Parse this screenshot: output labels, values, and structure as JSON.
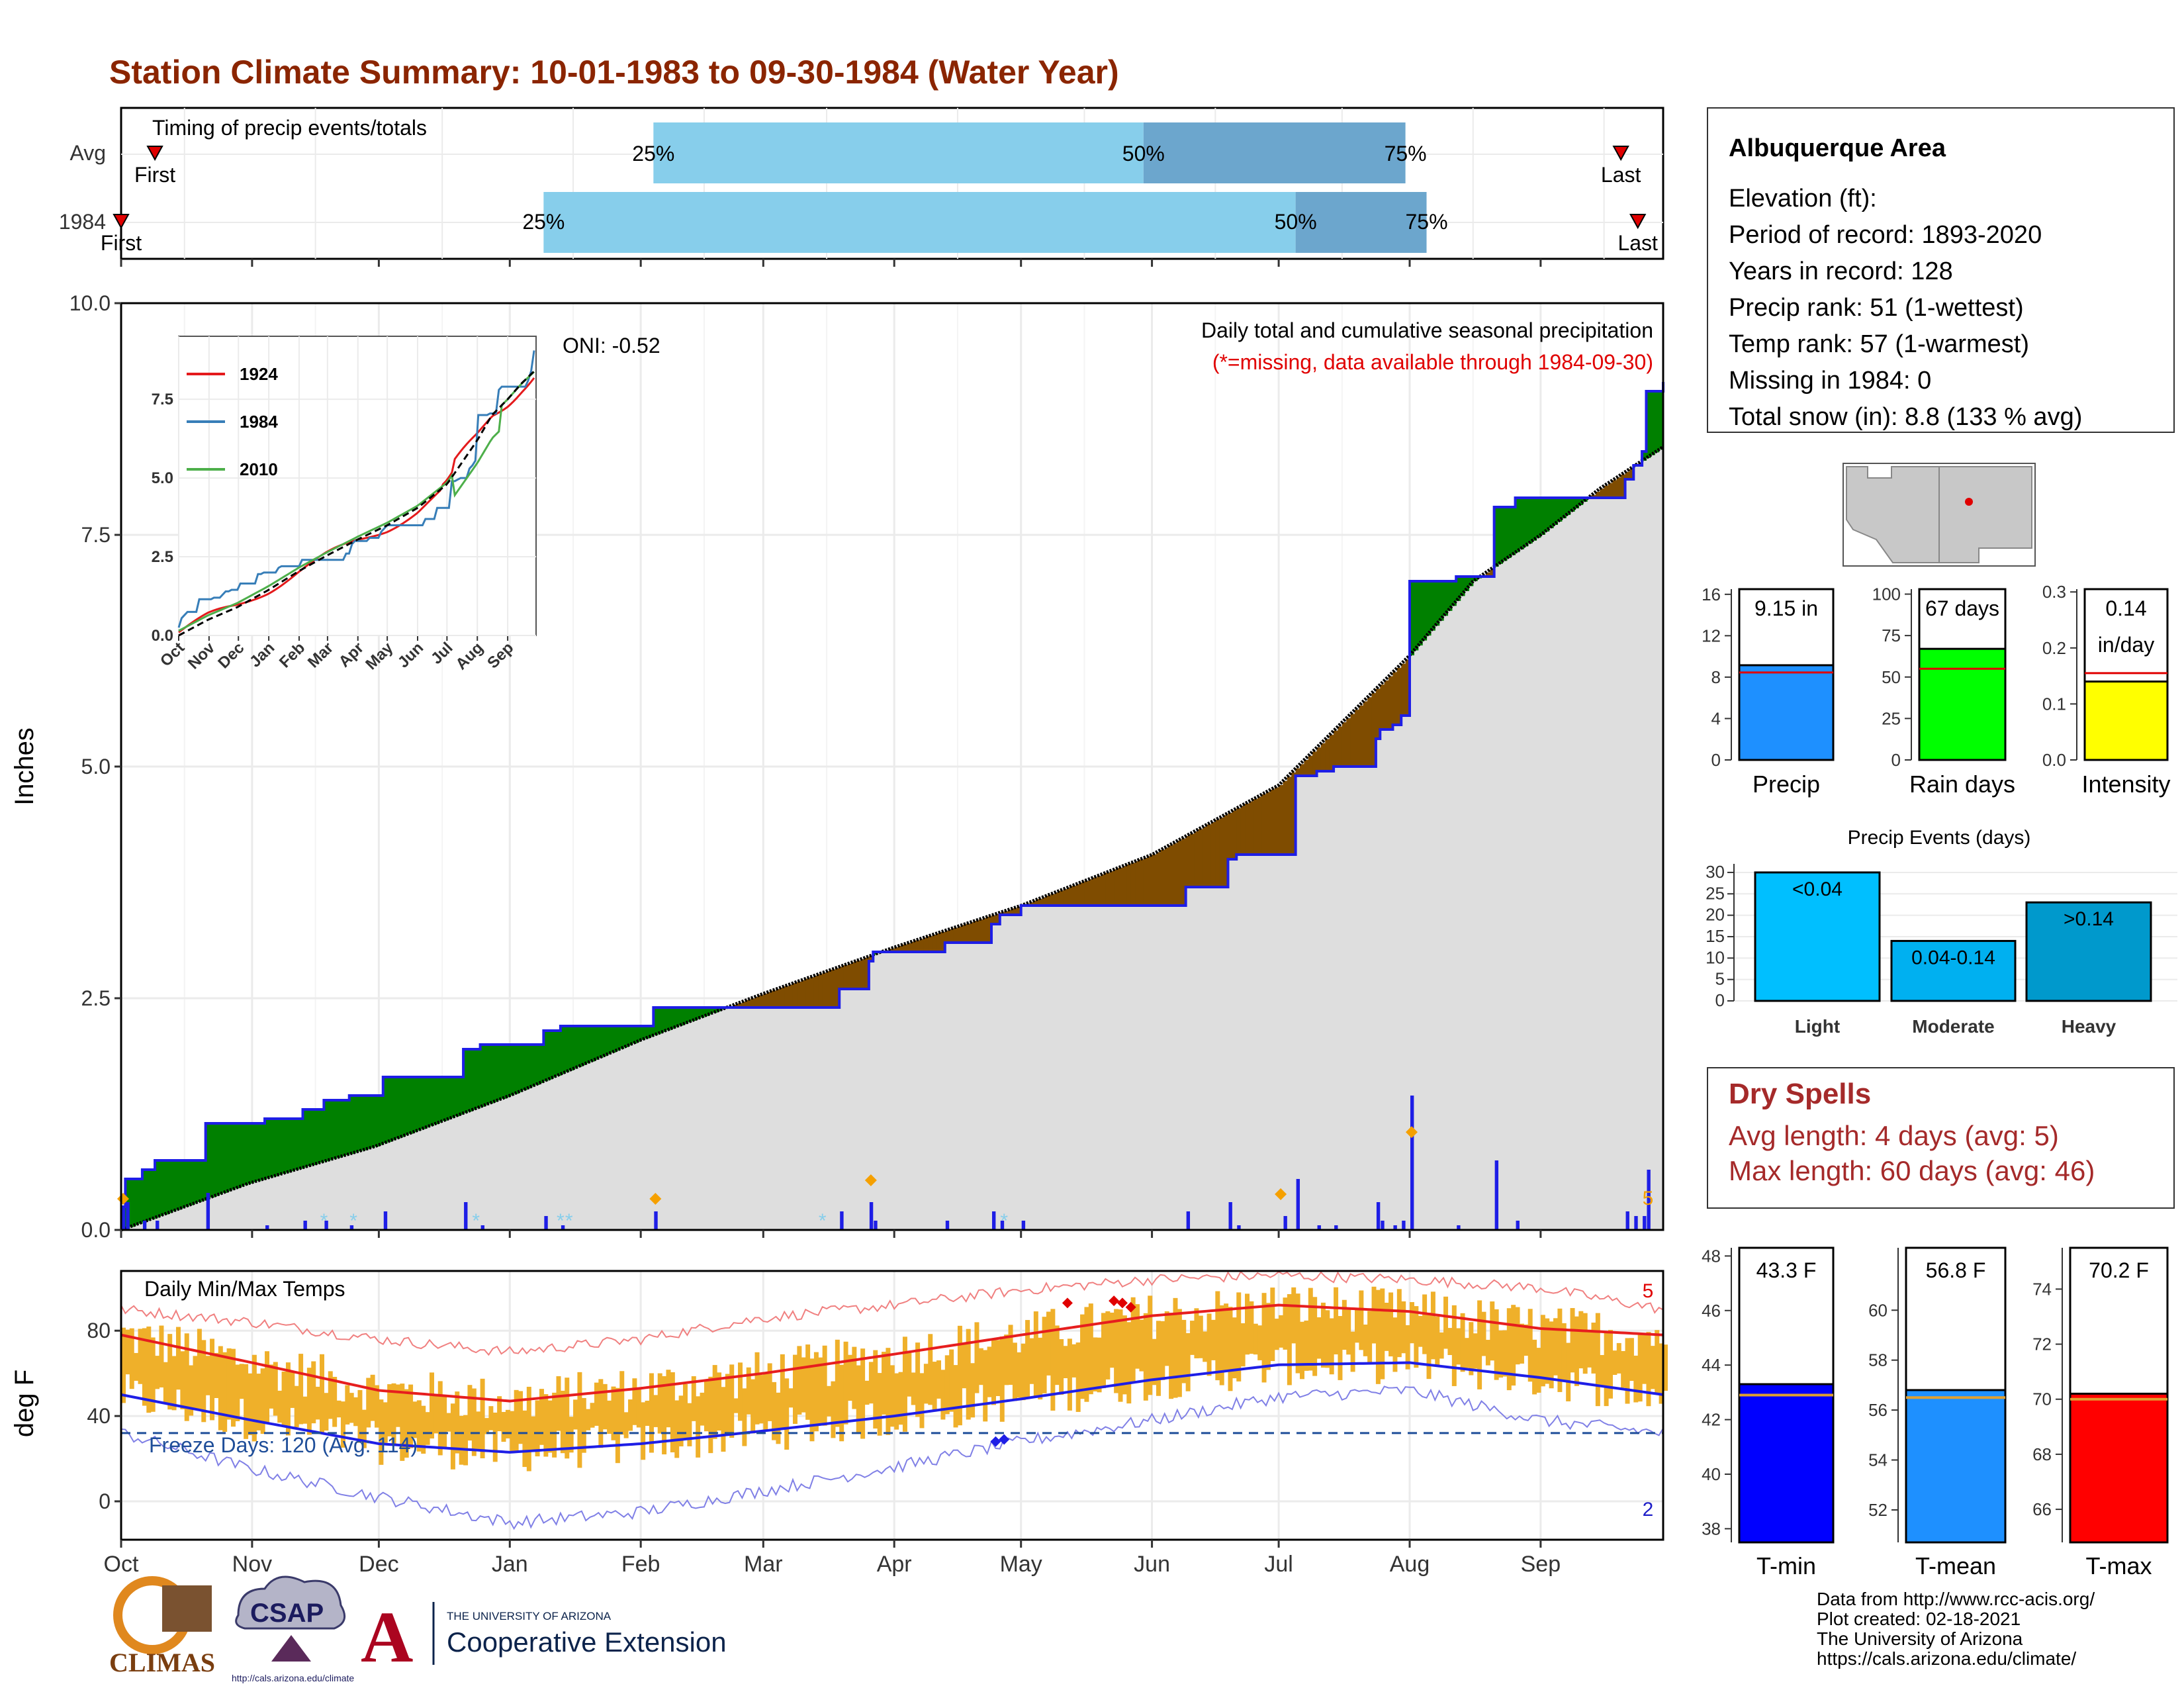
{
  "header": {
    "title": "Station Climate Summary: 10-01-1983 to 09-30-1984 (Water Year)"
  },
  "colors": {
    "title": "#8B2500",
    "green": "#008000",
    "brown": "#7F4C00",
    "precip_bar": "#1E1EE6",
    "tmax": "#E61E1E",
    "tmin": "#1E1EE6",
    "temp_bar": "#EFB02A"
  },
  "months": [
    "Oct",
    "Nov",
    "Dec",
    "Jan",
    "Feb",
    "Mar",
    "Apr",
    "May",
    "Jun",
    "Jul",
    "Aug",
    "Sep"
  ],
  "month_starts": [
    0,
    31,
    61,
    92,
    123,
    152,
    183,
    213,
    244,
    274,
    305,
    336
  ],
  "timing": {
    "title": "Timing of precip events/totals",
    "rows": [
      {
        "label": "Avg",
        "first": 8,
        "q25": 126,
        "q50": 242,
        "q75": 304,
        "last": 355,
        "first_text": "First",
        "last_text": "Last"
      },
      {
        "label": "1984",
        "first": 0,
        "q25": 100,
        "q50": 278,
        "q75": 309,
        "last": 359,
        "first_text": "First",
        "last_text": "Last"
      }
    ],
    "q_labels": [
      "25%",
      "50%",
      "75%"
    ]
  },
  "precip_panel": {
    "ylabel": "Inches",
    "ylim": [
      0,
      10
    ],
    "yticks": [
      "0.0",
      "2.5",
      "5.0",
      "7.5",
      "10.0"
    ],
    "oni": "ONI: -0.52",
    "title": "Daily total and cumulative seasonal precipitation",
    "subtitle": "(*=missing, data available through 1984-09-30)",
    "corner_label": "5"
  },
  "chart_data": [
    {
      "type": "line",
      "name": "cumulative-precip",
      "x_unit": "day of water year",
      "ylim": [
        0,
        10
      ],
      "ylabel": "Inches",
      "average_cumulative": [
        [
          0,
          0
        ],
        [
          30,
          0.5
        ],
        [
          60,
          0.9
        ],
        [
          92,
          1.45
        ],
        [
          123,
          2.05
        ],
        [
          152,
          2.55
        ],
        [
          183,
          3.05
        ],
        [
          213,
          3.5
        ],
        [
          244,
          4.05
        ],
        [
          274,
          4.8
        ],
        [
          305,
          6.2
        ],
        [
          320,
          7.0
        ],
        [
          336,
          7.5
        ],
        [
          350,
          8.0
        ],
        [
          365,
          8.45
        ]
      ],
      "observed_cumulative_steps": [
        [
          0,
          0.25
        ],
        [
          1,
          0.55
        ],
        [
          5,
          0.65
        ],
        [
          8,
          0.75
        ],
        [
          20,
          1.15
        ],
        [
          34,
          1.2
        ],
        [
          43,
          1.3
        ],
        [
          48,
          1.4
        ],
        [
          54,
          1.45
        ],
        [
          62,
          1.65
        ],
        [
          81,
          1.95
        ],
        [
          85,
          2.0
        ],
        [
          100,
          2.15
        ],
        [
          104,
          2.2
        ],
        [
          126,
          2.4
        ],
        [
          146,
          2.4
        ],
        [
          170,
          2.6
        ],
        [
          177,
          2.9
        ],
        [
          178,
          3.0
        ],
        [
          195,
          3.1
        ],
        [
          206,
          3.3
        ],
        [
          208,
          3.4
        ],
        [
          213,
          3.5
        ],
        [
          252,
          3.7
        ],
        [
          262,
          4.0
        ],
        [
          264,
          4.05
        ],
        [
          278,
          4.9
        ],
        [
          283,
          4.95
        ],
        [
          287,
          5.0
        ],
        [
          297,
          5.3
        ],
        [
          298,
          5.4
        ],
        [
          301,
          5.45
        ],
        [
          303,
          5.55
        ],
        [
          305,
          7.0
        ],
        [
          316,
          7.05
        ],
        [
          325,
          7.8
        ],
        [
          330,
          7.9
        ],
        [
          356,
          8.1
        ],
        [
          358,
          8.25
        ],
        [
          360,
          8.4
        ],
        [
          361,
          9.05
        ],
        [
          365,
          9.15
        ]
      ],
      "daily_precip": [
        [
          0,
          0.25
        ],
        [
          1,
          0.3
        ],
        [
          5,
          0.1
        ],
        [
          8,
          0.1
        ],
        [
          20,
          0.4
        ],
        [
          34,
          0.05
        ],
        [
          43,
          0.1
        ],
        [
          48,
          0.1
        ],
        [
          54,
          0.05
        ],
        [
          62,
          0.2
        ],
        [
          81,
          0.3
        ],
        [
          85,
          0.05
        ],
        [
          100,
          0.15
        ],
        [
          104,
          0.05
        ],
        [
          126,
          0.2
        ],
        [
          170,
          0.2
        ],
        [
          177,
          0.3
        ],
        [
          178,
          0.1
        ],
        [
          195,
          0.1
        ],
        [
          206,
          0.2
        ],
        [
          208,
          0.1
        ],
        [
          213,
          0.1
        ],
        [
          252,
          0.2
        ],
        [
          262,
          0.3
        ],
        [
          264,
          0.05
        ],
        [
          275,
          0.15
        ],
        [
          278,
          0.55
        ],
        [
          283,
          0.05
        ],
        [
          287,
          0.05
        ],
        [
          297,
          0.3
        ],
        [
          298,
          0.1
        ],
        [
          301,
          0.05
        ],
        [
          303,
          0.1
        ],
        [
          305,
          1.45
        ],
        [
          316,
          0.05
        ],
        [
          325,
          0.75
        ],
        [
          330,
          0.1
        ],
        [
          356,
          0.2
        ],
        [
          358,
          0.15
        ],
        [
          360,
          0.15
        ],
        [
          361,
          0.65
        ]
      ],
      "legend_series": [
        "1924",
        "1984",
        "2010"
      ]
    },
    {
      "type": "line",
      "name": "inset-cumulative",
      "ylim": [
        0,
        9.5
      ],
      "yticks": [
        "0.0",
        "2.5",
        "5.0",
        "7.5"
      ],
      "legend": [
        "1924",
        "1984",
        "2010"
      ]
    },
    {
      "type": "bar",
      "name": "totals",
      "panels": [
        {
          "label": "Precip",
          "value": 9.15,
          "avg": 8.45,
          "ylim": [
            0,
            16.5
          ],
          "ticks": [
            0,
            4,
            8,
            12,
            16
          ],
          "text": "9.15 in",
          "color": "#1E90FF"
        },
        {
          "label": "Rain days",
          "value": 67,
          "avg": 55,
          "ylim": [
            0,
            103
          ],
          "ticks": [
            0,
            25,
            50,
            75,
            100
          ],
          "text": "67 days",
          "color": "#00FF00"
        },
        {
          "label": "Intensity",
          "value": 0.14,
          "avg": 0.155,
          "ylim": [
            0,
            0.305
          ],
          "ticks": [
            0.0,
            0.1,
            0.2,
            0.3
          ],
          "text": "0.14\nin/day",
          "color": "#FFFF00"
        }
      ]
    },
    {
      "type": "bar",
      "name": "precip-events",
      "title": "Precip Events (days)",
      "categories": [
        "Light",
        "Moderate",
        "Heavy"
      ],
      "values": [
        30,
        14,
        23
      ],
      "bar_labels": [
        "<0.04",
        "0.04-0.14",
        ">0.14"
      ],
      "ylim": [
        0,
        32
      ],
      "yticks": [
        0,
        5,
        10,
        15,
        20,
        25,
        30
      ]
    },
    {
      "type": "line",
      "name": "daily-temps",
      "title": "Daily Min/Max Temps",
      "ylabel": "deg F",
      "ylim": [
        -18,
        108
      ],
      "yticks": [
        0,
        40,
        80
      ],
      "freeze_line": 32,
      "freeze_text": "Freeze Days: 120 (Avg: 114)",
      "max_record_label": "5",
      "min_record_label": "2",
      "avg_tmax": [
        [
          0,
          78
        ],
        [
          31,
          65
        ],
        [
          61,
          52
        ],
        [
          92,
          47
        ],
        [
          123,
          53
        ],
        [
          152,
          60
        ],
        [
          183,
          69
        ],
        [
          213,
          78
        ],
        [
          244,
          87
        ],
        [
          274,
          92
        ],
        [
          305,
          89
        ],
        [
          336,
          81
        ],
        [
          365,
          78
        ]
      ],
      "avg_tmin": [
        [
          0,
          50
        ],
        [
          31,
          38
        ],
        [
          61,
          27
        ],
        [
          92,
          23
        ],
        [
          123,
          27
        ],
        [
          152,
          33
        ],
        [
          183,
          40
        ],
        [
          213,
          48
        ],
        [
          244,
          57
        ],
        [
          274,
          64
        ],
        [
          305,
          65
        ],
        [
          336,
          58
        ],
        [
          365,
          50
        ]
      ],
      "record_high": [
        [
          0,
          90
        ],
        [
          31,
          84
        ],
        [
          61,
          76
        ],
        [
          92,
          70
        ],
        [
          123,
          76
        ],
        [
          152,
          86
        ],
        [
          183,
          92
        ],
        [
          213,
          99
        ],
        [
          244,
          104
        ],
        [
          274,
          106
        ],
        [
          305,
          104
        ],
        [
          336,
          100
        ],
        [
          365,
          90
        ]
      ],
      "record_low": [
        [
          0,
          32
        ],
        [
          31,
          15
        ],
        [
          61,
          2
        ],
        [
          92,
          -10
        ],
        [
          123,
          -5
        ],
        [
          152,
          5
        ],
        [
          183,
          16
        ],
        [
          213,
          28
        ],
        [
          244,
          38
        ],
        [
          274,
          49
        ],
        [
          305,
          52
        ],
        [
          336,
          38
        ],
        [
          365,
          32
        ]
      ]
    },
    {
      "type": "bar",
      "name": "temp-summary",
      "panels": [
        {
          "label": "T-min",
          "value": 43.3,
          "avg": 42.9,
          "ylim": [
            37.5,
            48.3
          ],
          "ticks": [
            38,
            40,
            42,
            44,
            46,
            48
          ],
          "text": "43.3 F",
          "color": "#0000FF"
        },
        {
          "label": "T-mean",
          "value": 56.8,
          "avg": 56.5,
          "ylim": [
            50.7,
            62.5
          ],
          "ticks": [
            52,
            54,
            56,
            58,
            60
          ],
          "text": "56.8 F",
          "color": "#1E90FF"
        },
        {
          "label": "T-max",
          "value": 70.2,
          "avg": 70.0,
          "ylim": [
            64.8,
            75.5
          ],
          "ticks": [
            66,
            68,
            70,
            72,
            74
          ],
          "text": "70.2 F",
          "color": "#FF0000"
        }
      ]
    }
  ],
  "station": {
    "name": "Albuquerque Area",
    "lines": [
      "Elevation (ft):",
      "Period of record: 1893-2020",
      "Years in record: 128",
      "Precip rank: 51 (1-wettest)",
      "Temp rank: 57 (1-warmest)",
      "Missing in 1984: 0",
      "Total snow (in): 8.8 (133 % avg)"
    ]
  },
  "dry_spells": {
    "title": "Dry Spells",
    "avg": "Avg length: 4 days (avg: 5)",
    "max": "Max length: 60 days (avg: 46)"
  },
  "footer": {
    "lines": [
      "Data from http://www.rcc-acis.org/",
      "Plot created: 02-18-2021",
      "The University of Arizona",
      "https://cals.arizona.edu/climate/"
    ],
    "climas": "CLIMAS",
    "csap": "CSAP",
    "csap_url": "http://cals.arizona.edu/climate",
    "ua_line1": "THE UNIVERSITY OF ARIZONA",
    "ua_line2": "Cooperative Extension"
  }
}
